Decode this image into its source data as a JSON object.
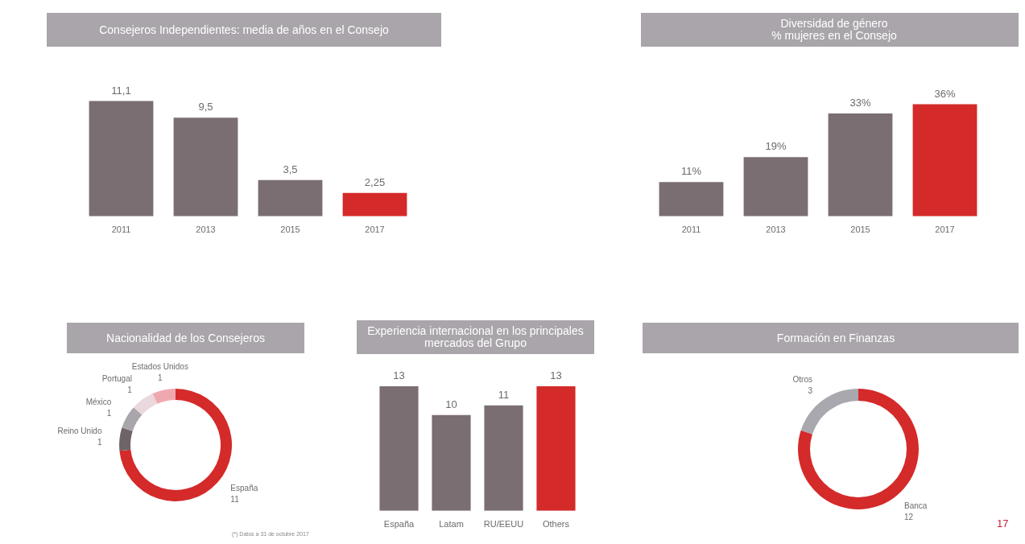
{
  "chart_data": [
    {
      "type": "bar",
      "title": "Consejeros Independientes: media de años en el Consejo",
      "categories": [
        "2011",
        "2013",
        "2015",
        "2017"
      ],
      "values": [
        11.1,
        9.5,
        3.5,
        2.25
      ],
      "colors": [
        "#7a6e73",
        "#7a6e73",
        "#7a6e73",
        "#d42a2a"
      ],
      "value_labels": [
        "11,1",
        "9,5",
        "3,5",
        "2,25"
      ]
    },
    {
      "type": "bar",
      "title": "Diversidad de género\n% mujeres en el Consejo",
      "categories": [
        "2011",
        "2013",
        "2015",
        "2017"
      ],
      "values": [
        11,
        19,
        33,
        36
      ],
      "colors": [
        "#7a6e73",
        "#7a6e73",
        "#7a6e73",
        "#d42a2a"
      ],
      "value_labels": [
        "11%",
        "19%",
        "33%",
        "36%"
      ]
    },
    {
      "type": "donut",
      "title": "Nacionalidad de los Consejeros",
      "categories": [
        "España",
        "Reino Unido",
        "México",
        "Portugal",
        "Estados Unidos"
      ],
      "values": [
        11,
        1,
        1,
        1,
        1
      ],
      "colors": [
        "#d42a2a",
        "#6e6468",
        "#a9a6ab",
        "#ead8dc",
        "#f0a8b0"
      ],
      "data_labels": true,
      "annotations": [
        "(*) Datos a 31 de octubre 2017"
      ]
    },
    {
      "type": "bar",
      "title": "Experiencia internacional en los principales mercados del Grupo",
      "categories": [
        "España",
        "Latam",
        "RU/EEUU",
        "Others"
      ],
      "values": [
        13,
        10,
        11,
        13
      ],
      "colors": [
        "#7a6e73",
        "#7a6e73",
        "#7a6e73",
        "#d42a2a"
      ],
      "data_labels": true
    },
    {
      "type": "donut",
      "title": "Formación en Finanzas",
      "categories": [
        "Banca",
        "Otros"
      ],
      "values": [
        12,
        3
      ],
      "colors": [
        "#d42a2a",
        "#a9a8ae"
      ],
      "data_labels": true,
      "annotations": [
        "17"
      ]
    }
  ]
}
